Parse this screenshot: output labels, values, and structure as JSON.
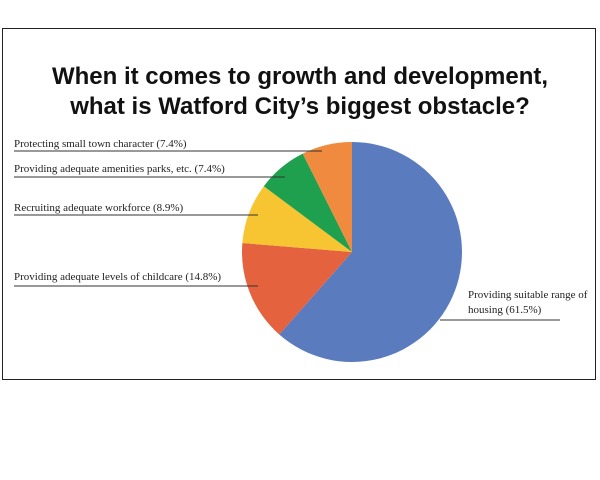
{
  "chart_data": {
    "type": "pie",
    "title": "When it comes to growth and development, what is Watford City’s biggest obstacle?",
    "categories": [
      "Providing suitable range of housing",
      "Providing adequate levels of childcare",
      "Recruiting adequate workforce",
      "Providing adequate amenities parks, etc.",
      "Protecting small town character"
    ],
    "values": [
      61.5,
      14.8,
      8.9,
      7.4,
      7.4
    ],
    "value_labels": [
      "(61.5%)",
      "(14.8%)",
      "(8.9%)",
      "(7.4%)",
      "(7.4%)"
    ],
    "colors": [
      "#5b7bbf",
      "#e4623e",
      "#f7c531",
      "#1fa04f",
      "#ef8a3e"
    ]
  }
}
